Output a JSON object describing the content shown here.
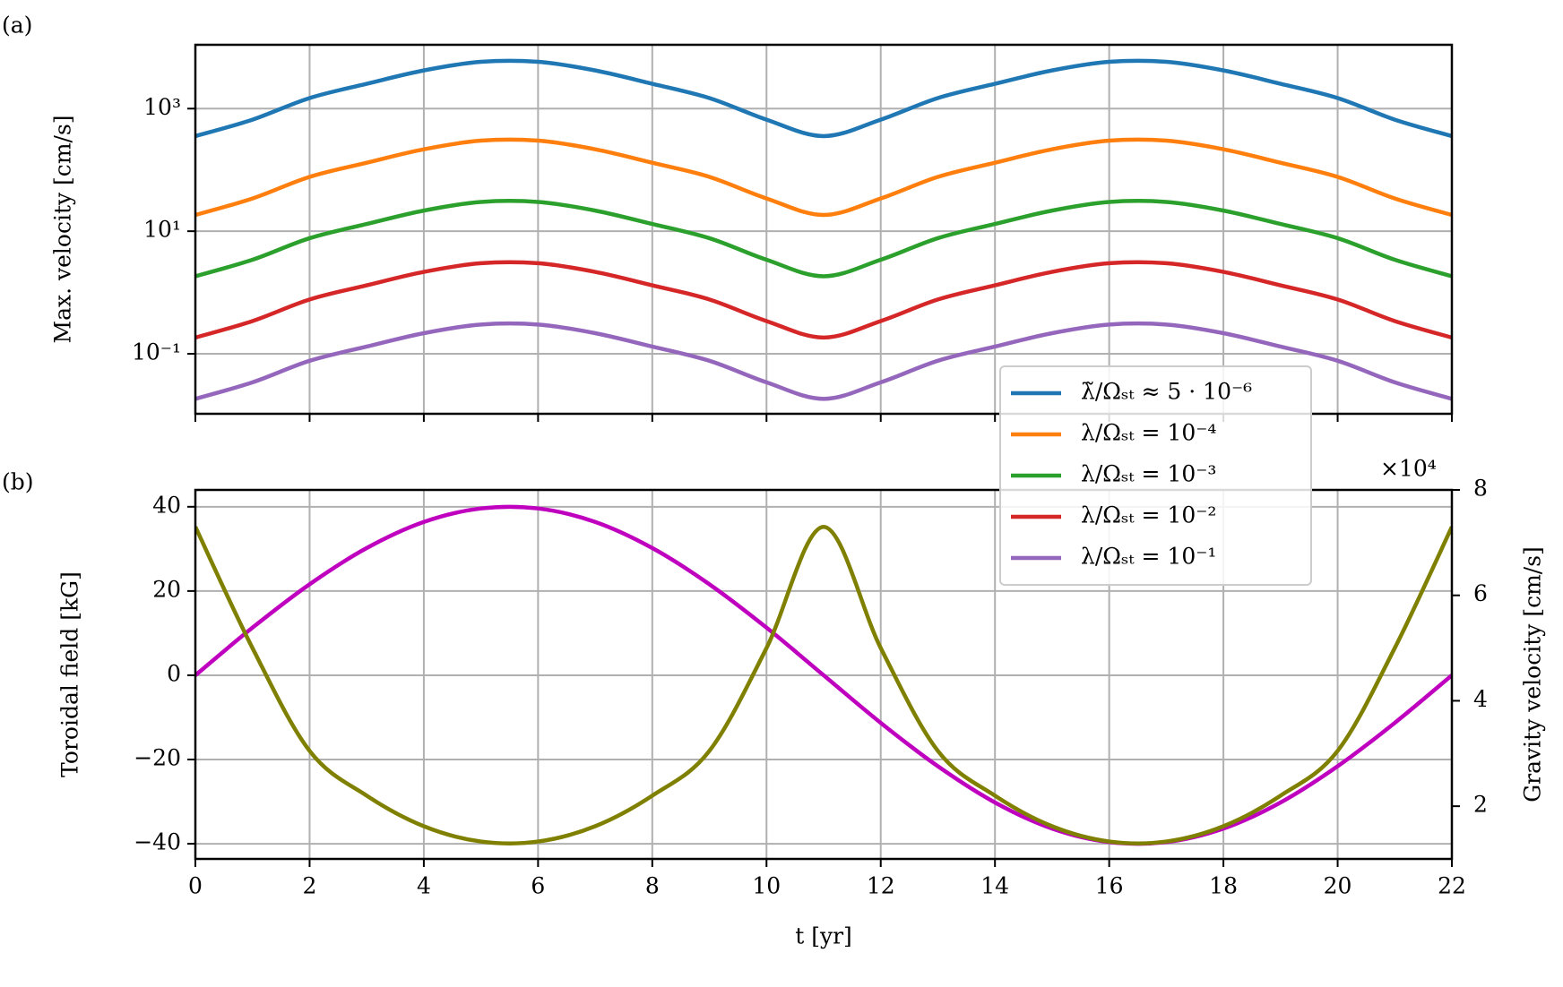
{
  "chart_data": [
    {
      "type": "line",
      "panel_label": "(a)",
      "ylabel": "Max. velocity [cm/s]",
      "yscale": "log",
      "grid": true,
      "x": [
        0,
        1,
        2,
        3,
        4,
        5,
        6,
        7,
        8,
        9,
        10,
        11,
        12,
        13,
        14,
        15,
        16,
        17,
        18,
        19,
        20,
        21,
        22
      ],
      "xlim": [
        0,
        22
      ],
      "xticks": [
        0,
        2,
        4,
        6,
        8,
        10,
        12,
        14,
        16,
        18,
        20,
        22
      ],
      "ylim": [
        0.0105,
        11000
      ],
      "yticks": [
        {
          "value": 0.1,
          "label": "10⁻¹"
        },
        {
          "value": 10,
          "label": "10¹"
        },
        {
          "value": 1000,
          "label": "10³"
        }
      ],
      "series": [
        {
          "name": "λ̃/Ωₛₜ ≈ 5 · 10⁻⁶",
          "color": "#1f77b4",
          "values": [
            356,
            661,
            1487,
            2540,
            4197,
            5800,
            5800,
            4197,
            2540,
            1487,
            661,
            356,
            661,
            1487,
            2540,
            4197,
            5800,
            5800,
            4197,
            2540,
            1487,
            661,
            356
          ]
        },
        {
          "name": "λ/Ωₛₜ = 10⁻⁴",
          "color": "#ff7f0e",
          "values": [
            18.4,
            34.2,
            76.9,
            131,
            217,
            300,
            300,
            217,
            131,
            76.9,
            34.2,
            18.4,
            34.2,
            76.9,
            131,
            217,
            300,
            300,
            217,
            131,
            76.9,
            34.2,
            18.4
          ]
        },
        {
          "name": "λ/Ωₛₜ = 10⁻³",
          "color": "#2ca02c",
          "values": [
            1.84,
            3.42,
            7.69,
            13.1,
            21.7,
            30,
            30,
            21.7,
            13.1,
            7.69,
            3.42,
            1.84,
            3.42,
            7.69,
            13.1,
            21.7,
            30,
            30,
            21.7,
            13.1,
            7.69,
            3.42,
            1.84
          ]
        },
        {
          "name": "λ/Ωₛₜ = 10⁻²",
          "color": "#d62728",
          "values": [
            0.184,
            0.342,
            0.769,
            1.31,
            2.17,
            3,
            3,
            2.17,
            1.31,
            0.769,
            0.342,
            0.184,
            0.342,
            0.769,
            1.31,
            2.17,
            3,
            3,
            2.17,
            1.31,
            0.769,
            0.342,
            0.184
          ]
        },
        {
          "name": "λ/Ωₛₜ = 10⁻¹",
          "color": "#9467bd",
          "values": [
            0.0184,
            0.0342,
            0.0769,
            0.131,
            0.217,
            0.3,
            0.3,
            0.217,
            0.131,
            0.0769,
            0.0342,
            0.0184,
            0.0342,
            0.0769,
            0.131,
            0.217,
            0.3,
            0.3,
            0.217,
            0.131,
            0.0769,
            0.0342,
            0.0184
          ]
        }
      ]
    },
    {
      "type": "line",
      "panel_label": "(b)",
      "xlabel": "t [yr]",
      "ylabel": "Toroidal field [kG]",
      "y2label": "Gravity velocity [cm/s]",
      "y2_multiplier": "×10⁴",
      "grid": true,
      "x": [
        0,
        1,
        2,
        3,
        4,
        5,
        6,
        7,
        8,
        9,
        10,
        11,
        12,
        13,
        14,
        15,
        16,
        17,
        18,
        19,
        20,
        21,
        22
      ],
      "xlim": [
        0,
        22
      ],
      "xticks": [
        0,
        2,
        4,
        6,
        8,
        10,
        12,
        14,
        16,
        18,
        20,
        22
      ],
      "ylim": [
        -43.6,
        44
      ],
      "yticks": [
        {
          "value": -40,
          "label": "−40"
        },
        {
          "value": -20,
          "label": "−20"
        },
        0,
        20,
        40
      ],
      "y2lim": [
        1,
        8
      ],
      "y2ticks": [
        2,
        4,
        6,
        8
      ],
      "series": [
        {
          "color": "#bf00bf",
          "values": [
            0,
            11.3,
            21.6,
            30.2,
            36.4,
            39.6,
            39.6,
            36.4,
            30.2,
            21.6,
            11.3,
            0,
            -11.3,
            -21.6,
            -30.2,
            -36.4,
            -39.6,
            -39.6,
            -36.4,
            -30.2,
            -21.6,
            -11.3,
            0
          ]
        },
        {
          "color": "#808000",
          "axis": "y2",
          "values": [
            7.3,
            5.0,
            3.05,
            2.2,
            1.62,
            1.33,
            1.33,
            1.62,
            2.2,
            3.05,
            5.0,
            7.3,
            5.0,
            3.05,
            2.2,
            1.62,
            1.33,
            1.33,
            1.62,
            2.2,
            3.05,
            5.0,
            7.3
          ]
        }
      ]
    }
  ]
}
